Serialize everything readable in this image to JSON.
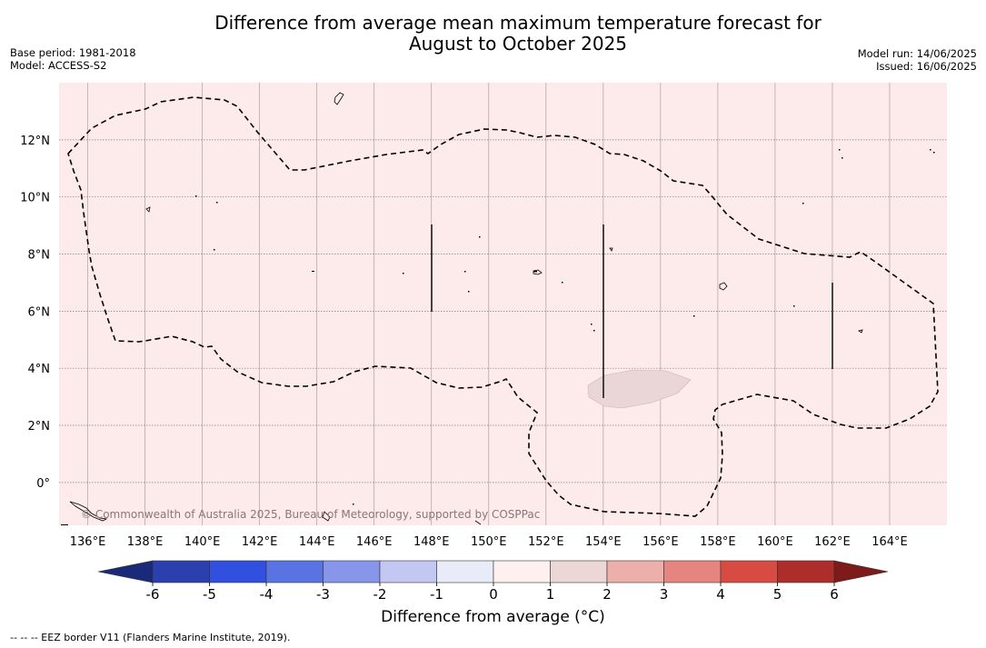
{
  "title_line1": "Difference from average mean maximum temperature forecast for",
  "title_line2": "August to October 2025",
  "base_period": "Base period: 1981-2018",
  "model": "Model: ACCESS-S2",
  "model_run": "Model run: 14/06/2025",
  "issued": "Issued: 16/06/2025",
  "copyright": "© Commonwealth of Australia 2025, Bureau of Meteorology, supported by COSPPac",
  "map": {
    "lon_range": [
      135.0,
      166.0
    ],
    "lat_range": [
      -1.5,
      14.0
    ],
    "lon_ticks": [
      "136°E",
      "138°E",
      "140°E",
      "142°E",
      "144°E",
      "146°E",
      "148°E",
      "150°E",
      "152°E",
      "154°E",
      "156°E",
      "158°E",
      "160°E",
      "162°E",
      "164°E"
    ],
    "lat_ticks": [
      "12°N",
      "10°N",
      "8°N",
      "6°N",
      "4°N",
      "2°N",
      "0°"
    ],
    "background_category": "0 to 1",
    "anomaly_patch_category": "1 to 2",
    "anomaly_patch_center": [
      "155°E",
      "3.3°N"
    ],
    "eez_border_style": "dashed",
    "gridlines": true
  },
  "colorbar": {
    "label": "Difference from average ($^\\circ$C)",
    "label_display": "Difference from average (°C)",
    "ticks": [
      "-6",
      "-5",
      "-4",
      "-3",
      "-2",
      "-1",
      "0",
      "1",
      "2",
      "3",
      "4",
      "5",
      "6"
    ],
    "colors": [
      "#1b2a78",
      "#2b3fae",
      "#3150e0",
      "#5973e3",
      "#8796ea",
      "#c2c8f2",
      "#e9ebf9",
      "#fdf0ee",
      "#ecd6d6",
      "#edafa9",
      "#e6857f",
      "#d84b42",
      "#ad2d2a",
      "#7d1a1a"
    ],
    "extend": "both"
  },
  "footnote": "--  --  -- EEZ border V11 (Flanders Marine Institute, 2019)."
}
